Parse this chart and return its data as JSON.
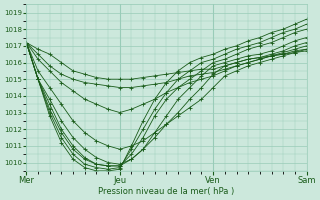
{
  "title": "",
  "xlabel": "Pression niveau de la mer( hPa )",
  "ylabel": "",
  "background_color": "#cce8dc",
  "grid_color": "#99ccb8",
  "line_color": "#1a5c1a",
  "marker_color": "#1a5c1a",
  "ylim": [
    1009.5,
    1019.5
  ],
  "yticks": [
    1010,
    1011,
    1012,
    1013,
    1014,
    1015,
    1016,
    1017,
    1018,
    1019
  ],
  "day_ticks": [
    0,
    24,
    48,
    72
  ],
  "day_labels": [
    "Mer",
    "Jeu",
    "Ven",
    "Sam"
  ],
  "series": [
    {
      "points": [
        [
          0,
          1017.2
        ],
        [
          3,
          1016.8
        ],
        [
          6,
          1016.5
        ],
        [
          9,
          1016.0
        ],
        [
          12,
          1015.5
        ],
        [
          15,
          1015.3
        ],
        [
          18,
          1015.1
        ],
        [
          21,
          1015.0
        ],
        [
          24,
          1015.0
        ],
        [
          27,
          1015.0
        ],
        [
          30,
          1015.1
        ],
        [
          33,
          1015.2
        ],
        [
          36,
          1015.3
        ],
        [
          39,
          1015.4
        ],
        [
          42,
          1015.5
        ],
        [
          45,
          1015.6
        ],
        [
          48,
          1015.6
        ],
        [
          51,
          1015.8
        ],
        [
          54,
          1016.0
        ],
        [
          57,
          1016.2
        ],
        [
          60,
          1016.3
        ],
        [
          63,
          1016.4
        ],
        [
          66,
          1016.5
        ],
        [
          69,
          1016.6
        ],
        [
          72,
          1016.7
        ]
      ]
    },
    {
      "points": [
        [
          0,
          1017.2
        ],
        [
          3,
          1016.5
        ],
        [
          6,
          1015.8
        ],
        [
          9,
          1015.3
        ],
        [
          12,
          1015.0
        ],
        [
          15,
          1014.8
        ],
        [
          18,
          1014.7
        ],
        [
          21,
          1014.6
        ],
        [
          24,
          1014.5
        ],
        [
          27,
          1014.5
        ],
        [
          30,
          1014.6
        ],
        [
          33,
          1014.7
        ],
        [
          36,
          1014.8
        ],
        [
          39,
          1015.0
        ],
        [
          42,
          1015.2
        ],
        [
          45,
          1015.3
        ],
        [
          48,
          1015.4
        ],
        [
          51,
          1015.6
        ],
        [
          54,
          1015.8
        ],
        [
          57,
          1016.0
        ],
        [
          60,
          1016.2
        ],
        [
          63,
          1016.4
        ],
        [
          66,
          1016.5
        ],
        [
          69,
          1016.7
        ],
        [
          72,
          1016.8
        ]
      ]
    },
    {
      "points": [
        [
          0,
          1017.2
        ],
        [
          3,
          1016.2
        ],
        [
          6,
          1015.5
        ],
        [
          9,
          1014.8
        ],
        [
          12,
          1014.3
        ],
        [
          15,
          1013.8
        ],
        [
          18,
          1013.5
        ],
        [
          21,
          1013.2
        ],
        [
          24,
          1013.0
        ],
        [
          27,
          1013.2
        ],
        [
          30,
          1013.5
        ],
        [
          33,
          1013.8
        ],
        [
          36,
          1014.2
        ],
        [
          39,
          1014.5
        ],
        [
          42,
          1014.8
        ],
        [
          45,
          1015.0
        ],
        [
          48,
          1015.2
        ],
        [
          51,
          1015.5
        ],
        [
          54,
          1015.8
        ],
        [
          57,
          1016.0
        ],
        [
          60,
          1016.2
        ],
        [
          63,
          1016.4
        ],
        [
          66,
          1016.6
        ],
        [
          69,
          1016.8
        ],
        [
          72,
          1017.0
        ]
      ]
    },
    {
      "points": [
        [
          0,
          1017.2
        ],
        [
          3,
          1015.5
        ],
        [
          6,
          1014.5
        ],
        [
          9,
          1013.5
        ],
        [
          12,
          1012.5
        ],
        [
          15,
          1011.8
        ],
        [
          18,
          1011.3
        ],
        [
          21,
          1011.0
        ],
        [
          24,
          1010.8
        ],
        [
          27,
          1011.0
        ],
        [
          30,
          1011.3
        ],
        [
          33,
          1011.8
        ],
        [
          36,
          1012.3
        ],
        [
          39,
          1012.8
        ],
        [
          42,
          1013.3
        ],
        [
          45,
          1013.8
        ],
        [
          48,
          1014.5
        ],
        [
          51,
          1015.2
        ],
        [
          54,
          1015.5
        ],
        [
          57,
          1015.8
        ],
        [
          60,
          1016.0
        ],
        [
          63,
          1016.2
        ],
        [
          66,
          1016.4
        ],
        [
          69,
          1016.6
        ],
        [
          72,
          1016.8
        ]
      ]
    },
    {
      "points": [
        [
          0,
          1017.2
        ],
        [
          3,
          1015.0
        ],
        [
          6,
          1013.8
        ],
        [
          9,
          1012.5
        ],
        [
          12,
          1011.5
        ],
        [
          15,
          1010.8
        ],
        [
          18,
          1010.3
        ],
        [
          21,
          1010.0
        ],
        [
          24,
          1009.9
        ],
        [
          27,
          1010.2
        ],
        [
          30,
          1010.8
        ],
        [
          33,
          1011.5
        ],
        [
          36,
          1012.3
        ],
        [
          39,
          1013.0
        ],
        [
          42,
          1013.8
        ],
        [
          45,
          1014.5
        ],
        [
          48,
          1015.3
        ],
        [
          51,
          1015.8
        ],
        [
          54,
          1016.0
        ],
        [
          57,
          1016.2
        ],
        [
          60,
          1016.3
        ],
        [
          63,
          1016.5
        ],
        [
          66,
          1016.7
        ],
        [
          69,
          1017.0
        ],
        [
          72,
          1017.2
        ]
      ]
    },
    {
      "points": [
        [
          0,
          1017.2
        ],
        [
          3,
          1015.0
        ],
        [
          6,
          1013.5
        ],
        [
          9,
          1012.0
        ],
        [
          12,
          1011.0
        ],
        [
          15,
          1010.3
        ],
        [
          18,
          1009.9
        ],
        [
          21,
          1009.8
        ],
        [
          24,
          1009.8
        ],
        [
          27,
          1010.2
        ],
        [
          30,
          1010.8
        ],
        [
          33,
          1011.8
        ],
        [
          36,
          1012.8
        ],
        [
          39,
          1013.8
        ],
        [
          42,
          1014.5
        ],
        [
          45,
          1015.2
        ],
        [
          48,
          1015.8
        ],
        [
          51,
          1016.0
        ],
        [
          54,
          1016.2
        ],
        [
          57,
          1016.4
        ],
        [
          60,
          1016.5
        ],
        [
          63,
          1016.7
        ],
        [
          66,
          1017.0
        ],
        [
          69,
          1017.3
        ],
        [
          72,
          1017.5
        ]
      ]
    },
    {
      "points": [
        [
          0,
          1017.2
        ],
        [
          3,
          1015.0
        ],
        [
          6,
          1013.2
        ],
        [
          9,
          1011.8
        ],
        [
          12,
          1010.8
        ],
        [
          15,
          1010.2
        ],
        [
          18,
          1009.9
        ],
        [
          21,
          1009.8
        ],
        [
          24,
          1009.8
        ],
        [
          27,
          1010.5
        ],
        [
          30,
          1011.5
        ],
        [
          33,
          1012.8
        ],
        [
          36,
          1013.8
        ],
        [
          39,
          1014.5
        ],
        [
          42,
          1015.0
        ],
        [
          45,
          1015.5
        ],
        [
          48,
          1016.0
        ],
        [
          51,
          1016.2
        ],
        [
          54,
          1016.5
        ],
        [
          57,
          1016.8
        ],
        [
          60,
          1017.0
        ],
        [
          63,
          1017.2
        ],
        [
          66,
          1017.5
        ],
        [
          69,
          1017.8
        ],
        [
          72,
          1018.0
        ]
      ]
    },
    {
      "points": [
        [
          0,
          1017.2
        ],
        [
          3,
          1015.0
        ],
        [
          6,
          1013.0
        ],
        [
          9,
          1011.5
        ],
        [
          12,
          1010.5
        ],
        [
          15,
          1009.9
        ],
        [
          18,
          1009.7
        ],
        [
          21,
          1009.6
        ],
        [
          24,
          1009.7
        ],
        [
          27,
          1010.8
        ],
        [
          30,
          1012.0
        ],
        [
          33,
          1013.2
        ],
        [
          36,
          1014.2
        ],
        [
          39,
          1015.0
        ],
        [
          42,
          1015.5
        ],
        [
          45,
          1016.0
        ],
        [
          48,
          1016.2
        ],
        [
          51,
          1016.5
        ],
        [
          54,
          1016.8
        ],
        [
          57,
          1017.0
        ],
        [
          60,
          1017.2
        ],
        [
          63,
          1017.5
        ],
        [
          66,
          1017.8
        ],
        [
          69,
          1018.0
        ],
        [
          72,
          1018.3
        ]
      ]
    },
    {
      "points": [
        [
          0,
          1017.2
        ],
        [
          3,
          1015.0
        ],
        [
          6,
          1012.8
        ],
        [
          9,
          1011.2
        ],
        [
          12,
          1010.2
        ],
        [
          15,
          1009.7
        ],
        [
          18,
          1009.5
        ],
        [
          21,
          1009.5
        ],
        [
          24,
          1009.6
        ],
        [
          27,
          1011.0
        ],
        [
          30,
          1012.5
        ],
        [
          33,
          1013.8
        ],
        [
          36,
          1014.8
        ],
        [
          39,
          1015.5
        ],
        [
          42,
          1016.0
        ],
        [
          45,
          1016.3
        ],
        [
          48,
          1016.5
        ],
        [
          51,
          1016.8
        ],
        [
          54,
          1017.0
        ],
        [
          57,
          1017.3
        ],
        [
          60,
          1017.5
        ],
        [
          63,
          1017.8
        ],
        [
          66,
          1018.0
        ],
        [
          69,
          1018.3
        ],
        [
          72,
          1018.6
        ]
      ]
    }
  ]
}
